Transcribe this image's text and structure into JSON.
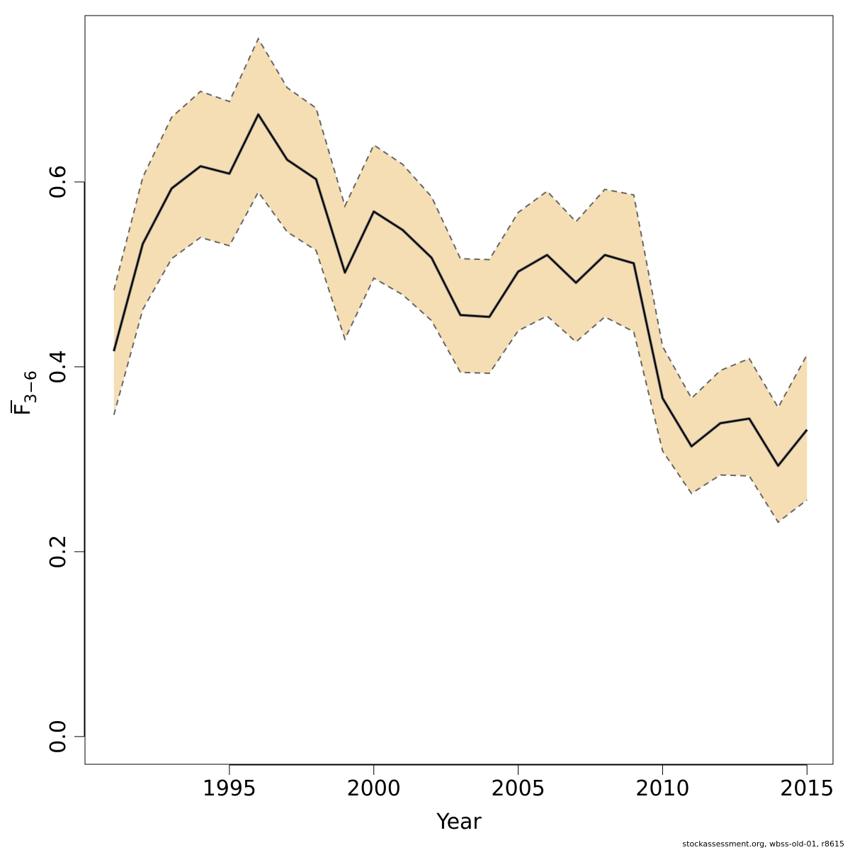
{
  "chart_data": {
    "type": "line",
    "title": "",
    "xlabel": "Year",
    "ylabel_main": "F",
    "ylabel_sub": "3−6",
    "x_ticks": [
      1995,
      2000,
      2005,
      2010,
      2015
    ],
    "y_ticks": [
      0.0,
      0.2,
      0.4,
      0.6
    ],
    "y_tick_labels": [
      "0.0",
      "0.2",
      "0.4",
      "0.6"
    ],
    "xlim": [
      1990.0,
      2015.9
    ],
    "ylim": [
      -0.03,
      0.78
    ],
    "grid": false,
    "legend": "none",
    "colors": {
      "band": "#f5deb3",
      "line": "#000000",
      "bound": "#666666"
    },
    "x": [
      1991,
      1992,
      1993,
      1994,
      1995,
      1996,
      1997,
      1998,
      1999,
      2000,
      2001,
      2002,
      2003,
      2004,
      2005,
      2006,
      2007,
      2008,
      2009,
      2010,
      2011,
      2012,
      2013,
      2014,
      2015
    ],
    "estimate": [
      0.417,
      0.533,
      0.593,
      0.617,
      0.609,
      0.673,
      0.624,
      0.603,
      0.502,
      0.568,
      0.548,
      0.518,
      0.456,
      0.454,
      0.503,
      0.521,
      0.491,
      0.521,
      0.512,
      0.366,
      0.314,
      0.339,
      0.344,
      0.293,
      0.332
    ],
    "upper": [
      0.483,
      0.605,
      0.67,
      0.698,
      0.687,
      0.755,
      0.702,
      0.68,
      0.574,
      0.64,
      0.619,
      0.584,
      0.517,
      0.516,
      0.567,
      0.59,
      0.557,
      0.592,
      0.586,
      0.422,
      0.366,
      0.396,
      0.409,
      0.356,
      0.413
    ],
    "lower": [
      0.348,
      0.462,
      0.517,
      0.54,
      0.531,
      0.589,
      0.546,
      0.526,
      0.43,
      0.496,
      0.478,
      0.45,
      0.394,
      0.393,
      0.439,
      0.455,
      0.427,
      0.454,
      0.438,
      0.309,
      0.263,
      0.283,
      0.282,
      0.232,
      0.256
    ]
  },
  "footer": {
    "credit": "stockassessment.org, wbss-old-01, r8615"
  }
}
